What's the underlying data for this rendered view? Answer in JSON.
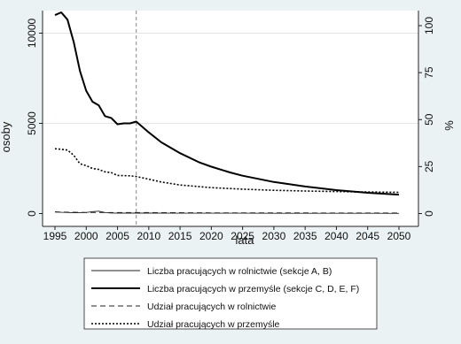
{
  "chart_data": {
    "type": "line",
    "xlabel": "lata",
    "ylabel_left": "osoby",
    "ylabel_right": "%",
    "x_ticks": [
      1995,
      2000,
      2005,
      2010,
      2015,
      2020,
      2025,
      2030,
      2035,
      2040,
      2045,
      2050
    ],
    "xlim": [
      1995,
      2050
    ],
    "ylim_left": [
      0,
      11200
    ],
    "y_ticks_left": [
      0,
      5000,
      10000
    ],
    "ylim_right": [
      0,
      100
    ],
    "y_ticks_right": [
      0,
      25,
      50,
      75,
      100
    ],
    "gridlines_left": [
      5000,
      10000
    ],
    "reference_line_x": 2008,
    "legend_position": "bottom",
    "series": [
      {
        "name": "Liczba pracujących w rolnictwie (sekcje A, B)",
        "axis": "left",
        "style": "thin-solid",
        "x": [
          1995,
          1996,
          1997,
          1998,
          1999,
          2000,
          2001,
          2002,
          2003,
          2004,
          2005,
          2006,
          2007,
          2008,
          2010,
          2015,
          2020,
          2025,
          2030,
          2035,
          2040,
          2045,
          2050
        ],
        "values": [
          100,
          70,
          60,
          50,
          45,
          60,
          110,
          130,
          60,
          30,
          25,
          30,
          25,
          25,
          24,
          22,
          20,
          18,
          16,
          15,
          14,
          13,
          12
        ]
      },
      {
        "name": "Liczba pracujących w przemyśle (sekcje C, D, E, F)",
        "axis": "left",
        "style": "thick-solid",
        "x": [
          1995,
          1996,
          1997,
          1998,
          1999,
          2000,
          2001,
          2002,
          2003,
          2004,
          2005,
          2006,
          2007,
          2008,
          2010,
          2012,
          2015,
          2018,
          2020,
          2023,
          2025,
          2030,
          2035,
          2040,
          2045,
          2050
        ],
        "values": [
          11000,
          11150,
          10750,
          9500,
          7900,
          6800,
          6200,
          6000,
          5400,
          5300,
          4950,
          5000,
          5000,
          5100,
          4500,
          3950,
          3350,
          2850,
          2600,
          2280,
          2100,
          1750,
          1500,
          1300,
          1150,
          1050
        ]
      },
      {
        "name": "Udział pracujących w rolnictwie",
        "axis": "right",
        "style": "dashed",
        "x": [
          1995,
          2000,
          2005,
          2008,
          2010,
          2020,
          2030,
          2040,
          2050
        ],
        "values": [
          0.8,
          0.6,
          0.5,
          0.5,
          0.5,
          0.4,
          0.4,
          0.3,
          0.3
        ]
      },
      {
        "name": "Udział pracujących w przemyśle",
        "axis": "right",
        "style": "dotted",
        "x": [
          1995,
          1996,
          1997,
          1998,
          1999,
          2000,
          2001,
          2002,
          2003,
          2004,
          2005,
          2006,
          2007,
          2008,
          2010,
          2012,
          2015,
          2020,
          2025,
          2030,
          2035,
          2040,
          2045,
          2050
        ],
        "values": [
          34.5,
          34.2,
          33.8,
          31.0,
          26.5,
          25.5,
          24.0,
          23.5,
          22.2,
          21.8,
          20.3,
          20.2,
          20.1,
          19.7,
          18.3,
          16.8,
          15.2,
          13.8,
          13.0,
          12.4,
          12.0,
          11.7,
          11.5,
          11.3
        ]
      }
    ]
  }
}
